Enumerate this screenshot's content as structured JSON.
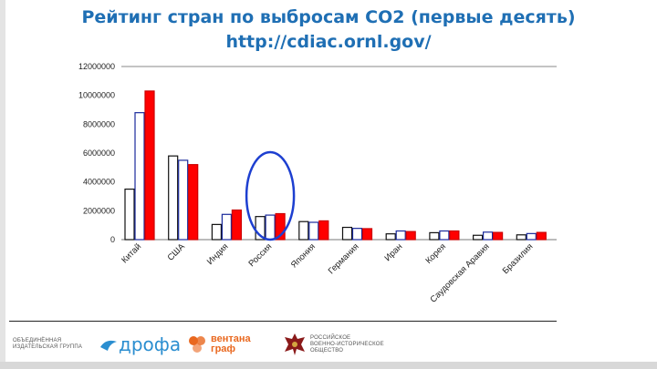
{
  "slide": {
    "title_line1": "Рейтинг стран по выбросам CO2 (первые десять)",
    "title_line2": "http://cdiac.ornl.gov/"
  },
  "chart_data": {
    "type": "bar",
    "categories": [
      "Китай",
      "США",
      "Индия",
      "Россия",
      "Япония",
      "Германия",
      "Иран",
      "Корея",
      "Саудовская Аравия",
      "Бразилия"
    ],
    "series": [
      {
        "values": [
          3500000,
          5800000,
          1050000,
          1600000,
          1250000,
          850000,
          400000,
          480000,
          300000,
          330000
        ],
        "color": "#ffffff",
        "stroke": "#111111"
      },
      {
        "values": [
          8800000,
          5500000,
          1750000,
          1700000,
          1200000,
          780000,
          600000,
          600000,
          520000,
          420000
        ],
        "color": "#ffffff",
        "stroke": "#1a2a9c"
      },
      {
        "values": [
          10300000,
          5200000,
          2050000,
          1800000,
          1300000,
          760000,
          560000,
          600000,
          500000,
          500000
        ],
        "color": "#ff0000",
        "stroke": "#cc0000"
      }
    ],
    "yticks": [
      "0",
      "2000000",
      "4000000",
      "6000000",
      "8000000",
      "10000000",
      "12000000"
    ],
    "ylim": [
      0,
      12000000
    ],
    "grid": "top-line-only",
    "highlight": {
      "category": "Россия",
      "shape": "ellipse",
      "color": "#1d3fd0"
    }
  },
  "footer": {
    "logo1_line1": "ОБЪЕДИНЁННАЯ",
    "logo1_line2": "ИЗДАТЕЛЬСКАЯ ГРУППА",
    "logo2": "дрофа",
    "logo3_line1": "вентана",
    "logo3_line2": "граф",
    "logo4_line1": "РОССИЙСКОЕ",
    "logo4_line2": "ВОЕННО-ИСТОРИЧЕСКОЕ",
    "logo4_line3": "ОБЩЕСТВО"
  }
}
